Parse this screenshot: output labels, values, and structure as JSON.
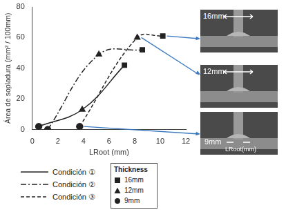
{
  "chart_data": {
    "type": "line",
    "y_label": "Área de sopladura (mm² / 100mm)",
    "x_label": "LRoot (mm)",
    "xlim": [
      0,
      12
    ],
    "xticks": [
      0,
      2,
      4,
      6,
      8,
      10,
      12
    ],
    "ylim": [
      0,
      80
    ],
    "yticks": [
      0,
      20,
      40,
      60,
      80
    ],
    "grid": false,
    "series": [
      {
        "name": "Condición ①",
        "color": "#222222",
        "line_style": "solid",
        "x": [
          0.5,
          3.9,
          7.2
        ],
        "values": [
          2,
          13,
          42
        ],
        "thickness": [
          "9mm",
          "12mm",
          "16mm"
        ]
      },
      {
        "name": "Condición ②",
        "color": "#222222",
        "line_style": "dashdot",
        "x": [
          1.2,
          5.2,
          8.6
        ],
        "values": [
          0,
          49,
          52
        ],
        "thickness": [
          "9mm",
          "12mm",
          "16mm"
        ]
      },
      {
        "name": "Condición ③",
        "color": "#222222",
        "line_style": "dashed",
        "x": [
          3.7,
          8.2,
          10.2
        ],
        "values": [
          2,
          60,
          61
        ],
        "thickness": [
          "9mm",
          "12mm",
          "16mm"
        ]
      }
    ],
    "thickness_legend": {
      "title": "Thickness",
      "items": [
        {
          "name": "16mm",
          "marker": "square"
        },
        {
          "name": "12mm",
          "marker": "triangle"
        },
        {
          "name": "9mm",
          "marker": "circle"
        }
      ]
    },
    "photos": [
      {
        "label": "16mm"
      },
      {
        "label": "12mm"
      },
      {
        "label": "9mm",
        "axis_label": "LRoot(mm)"
      }
    ]
  }
}
